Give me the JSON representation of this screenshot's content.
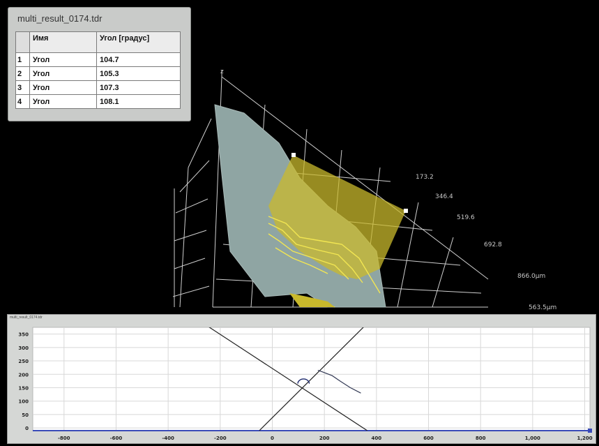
{
  "result_panel": {
    "title": "multi_result_0174.tdr",
    "headers": [
      "",
      "Имя",
      "Угол [градус]"
    ],
    "rows": [
      {
        "index": "1",
        "name": "Угол",
        "angle": "104.7"
      },
      {
        "index": "2",
        "name": "Угол",
        "angle": "105.3"
      },
      {
        "index": "3",
        "name": "Угол",
        "angle": "107.3"
      },
      {
        "index": "4",
        "name": "Угол",
        "angle": "108.1"
      }
    ]
  },
  "view_3d": {
    "axis_z_label": "z",
    "axis_labels": [
      "173.2",
      "346.4",
      "519.6",
      "692.8",
      "866.0µm",
      "563.5µm"
    ],
    "colors": {
      "surface": "#8fa5a3",
      "plane": "#c9b92c",
      "contour": "#f2e652",
      "grid": "#d0d0d0"
    }
  },
  "profile_panel": {
    "title": "multi_result_0174.tdr",
    "chart_data": {
      "type": "line",
      "x_ticks": [
        "-800",
        "-600",
        "-400",
        "-200",
        "0",
        "200",
        "400",
        "600",
        "800",
        "1,000",
        "1,200"
      ],
      "y_ticks": [
        "0",
        "50",
        "100",
        "150",
        "200",
        "250",
        "300",
        "350"
      ],
      "xlim": [
        -920,
        1220
      ],
      "ylim": [
        -10,
        375
      ],
      "grid": true,
      "series": [
        {
          "points": [
            [
              -265,
              390
            ],
            [
              365,
              -10
            ]
          ]
        },
        {
          "points": [
            [
              -50,
              -10
            ],
            [
              365,
              390
            ]
          ]
        },
        {
          "points": [
            [
              175,
              215
            ],
            [
              190,
              210
            ],
            [
              230,
              195
            ],
            [
              260,
              175
            ],
            [
              300,
              150
            ],
            [
              340,
              130
            ]
          ]
        }
      ],
      "angle_arc": {
        "center": [
          120,
          160
        ],
        "radius": 40
      }
    }
  }
}
